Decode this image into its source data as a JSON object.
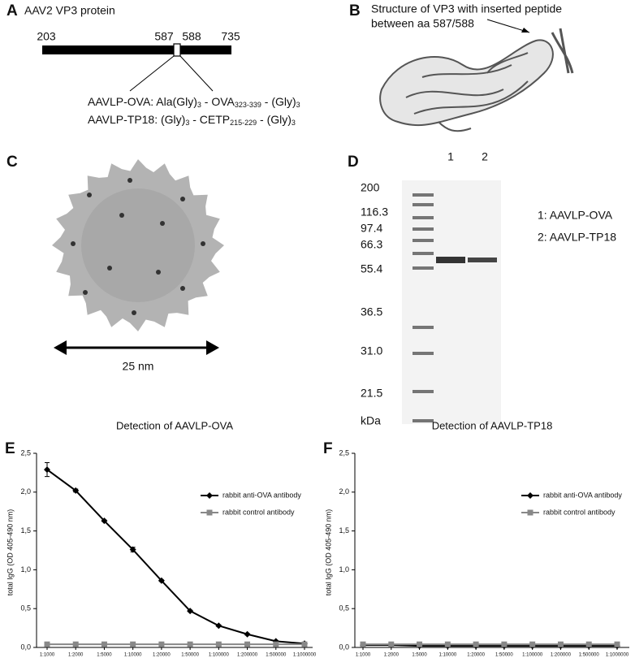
{
  "panels": {
    "a": {
      "letter": "A",
      "title": "AAV2 VP3 protein",
      "positions": [
        "203",
        "587",
        "588",
        "735"
      ],
      "constructs": [
        [
          "AAVLP-OVA: Ala(Gly)",
          "3",
          " - OVA",
          "323-339",
          " - (Gly)",
          "3"
        ],
        [
          "AAVLP-TP18: (Gly)",
          "3",
          " - CETP",
          "215-229",
          " - (Gly)",
          "3"
        ]
      ]
    },
    "b": {
      "letter": "B",
      "caption": [
        "Structure of VP3 with inserted peptide",
        "between aa 587/588"
      ]
    },
    "c": {
      "letter": "C",
      "scale": "25 nm"
    },
    "d": {
      "letter": "D",
      "lanes": [
        "1",
        "2"
      ],
      "markers": [
        "200",
        "116.3",
        "97.4",
        "66.3",
        "55.4",
        "36.5",
        "31.0",
        "21.5",
        "kDa"
      ],
      "legend": [
        "1: AAVLP-OVA",
        "2: AAVLP-TP18"
      ]
    }
  },
  "chart_data": [
    {
      "type": "line",
      "panel_label": "E",
      "title": "Detection of AAVLP-OVA",
      "y_label": "total IgG (OD 405-490 nm)",
      "categories": [
        "1:1000",
        "1:2000",
        "1:5000",
        "1:10000",
        "1:20000",
        "1:50000",
        "1:100000",
        "1:200000",
        "1:500000",
        "1:1000000"
      ],
      "series": [
        {
          "name": "rabbit anti-OVA antibody",
          "color": "#000000",
          "marker": "diamond",
          "values": [
            2.29,
            2.02,
            1.63,
            1.26,
            0.86,
            0.47,
            0.28,
            0.17,
            0.08,
            0.05
          ],
          "errors": [
            0.09,
            0.02,
            0.01,
            0.03,
            0.01,
            0.01,
            0.01,
            0.01,
            0.01,
            0.01
          ]
        },
        {
          "name": "rabbit control antibody",
          "color": "#888888",
          "marker": "square",
          "values": [
            0.04,
            0.04,
            0.04,
            0.04,
            0.04,
            0.04,
            0.04,
            0.04,
            0.04,
            0.04
          ]
        }
      ],
      "ylim": [
        0,
        2.5
      ],
      "yticks": [
        {
          "value": 0,
          "label": "0,0"
        },
        {
          "value": 0.5,
          "label": "0,5"
        },
        {
          "value": 1,
          "label": "1,0"
        },
        {
          "value": 1.5,
          "label": "1,5"
        },
        {
          "value": 2,
          "label": "2,0"
        },
        {
          "value": 2.5,
          "label": "2,5"
        }
      ]
    },
    {
      "type": "line",
      "panel_label": "F",
      "title": "Detection of AAVLP-TP18",
      "y_label": "total IgG (OD 405-490 nm)",
      "categories": [
        "1:1000",
        "1:2000",
        "1:5000",
        "1:10000",
        "1:20000",
        "1:50000",
        "1:100000",
        "1:200000",
        "1:500000",
        "1:1000000"
      ],
      "series": [
        {
          "name": "rabbit anti-OVA antibody",
          "color": "#000000",
          "marker": "diamond",
          "values": [
            0.03,
            0.03,
            0.02,
            0.02,
            0.02,
            0.02,
            0.02,
            0.02,
            0.02,
            0.02
          ]
        },
        {
          "name": "rabbit control antibody",
          "color": "#888888",
          "marker": "square",
          "values": [
            0.04,
            0.04,
            0.04,
            0.04,
            0.04,
            0.04,
            0.04,
            0.04,
            0.04,
            0.04
          ]
        }
      ],
      "ylim": [
        0,
        2.5
      ],
      "yticks": [
        {
          "value": 0,
          "label": "0,0"
        },
        {
          "value": 0.5,
          "label": "0,5"
        },
        {
          "value": 1,
          "label": "1,0"
        },
        {
          "value": 1.5,
          "label": "1,5"
        },
        {
          "value": 2,
          "label": "2,0"
        },
        {
          "value": 2.5,
          "label": "2,5"
        }
      ]
    }
  ]
}
